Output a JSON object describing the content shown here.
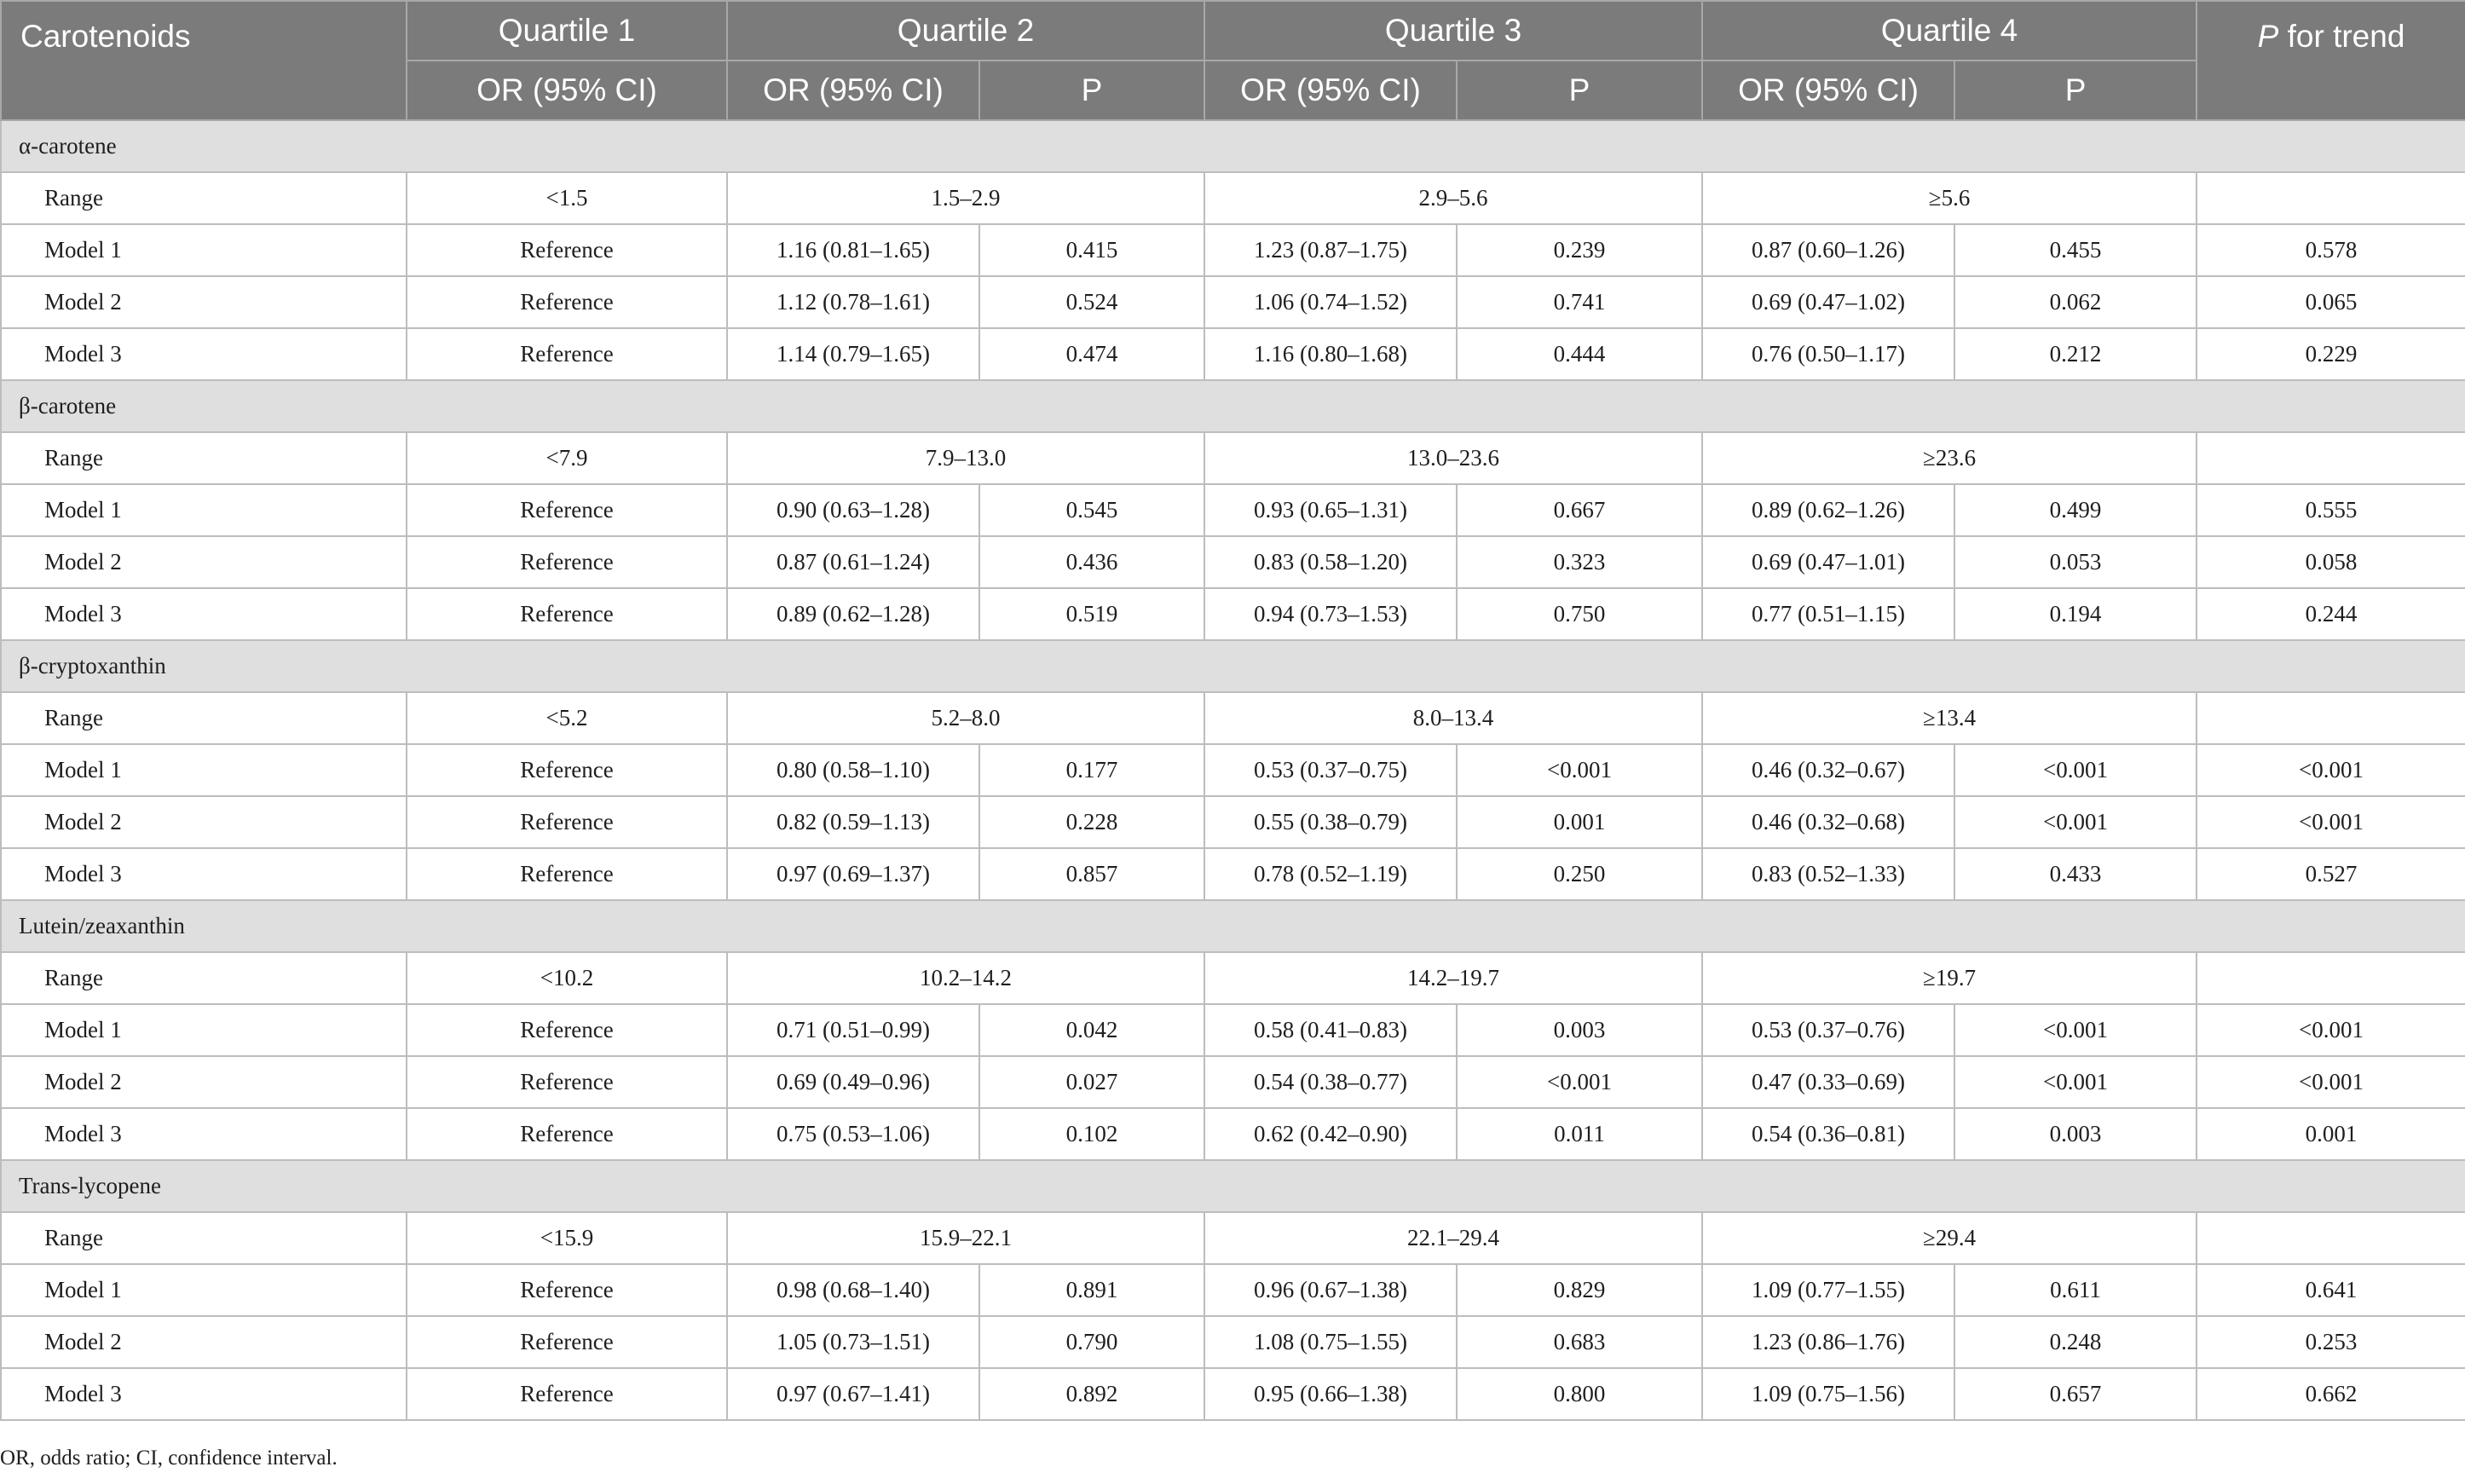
{
  "header": {
    "carotenoids": "Carotenoids",
    "quartile1": "Quartile 1",
    "quartile2": "Quartile 2",
    "quartile3": "Quartile 3",
    "quartile4": "Quartile 4",
    "p_for_trend_p": "P",
    "p_for_trend_rest": " for trend",
    "or_ci": "OR (95% CI)",
    "p": "P"
  },
  "groups": [
    {
      "name": "α-carotene",
      "range": [
        "Range",
        "<1.5",
        "1.5–2.9",
        "2.9–5.6",
        "≥5.6",
        ""
      ],
      "models": [
        [
          "Model 1",
          "Reference",
          "1.16 (0.81–1.65)",
          "0.415",
          "1.23 (0.87–1.75)",
          "0.239",
          "0.87 (0.60–1.26)",
          "0.455",
          "0.578"
        ],
        [
          "Model 2",
          "Reference",
          "1.12 (0.78–1.61)",
          "0.524",
          "1.06 (0.74–1.52)",
          "0.741",
          "0.69 (0.47–1.02)",
          "0.062",
          "0.065"
        ],
        [
          "Model 3",
          "Reference",
          "1.14 (0.79–1.65)",
          "0.474",
          "1.16 (0.80–1.68)",
          "0.444",
          "0.76 (0.50–1.17)",
          "0.212",
          "0.229"
        ]
      ]
    },
    {
      "name": "β-carotene",
      "range": [
        "Range",
        "<7.9",
        "7.9–13.0",
        "13.0–23.6",
        "≥23.6",
        ""
      ],
      "models": [
        [
          "Model 1",
          "Reference",
          "0.90 (0.63–1.28)",
          "0.545",
          "0.93 (0.65–1.31)",
          "0.667",
          "0.89 (0.62–1.26)",
          "0.499",
          "0.555"
        ],
        [
          "Model 2",
          "Reference",
          "0.87 (0.61–1.24)",
          "0.436",
          "0.83 (0.58–1.20)",
          "0.323",
          "0.69 (0.47–1.01)",
          "0.053",
          "0.058"
        ],
        [
          "Model 3",
          "Reference",
          "0.89 (0.62–1.28)",
          "0.519",
          "0.94 (0.73–1.53)",
          "0.750",
          "0.77 (0.51–1.15)",
          "0.194",
          "0.244"
        ]
      ]
    },
    {
      "name": "β-cryptoxanthin",
      "range": [
        "Range",
        "<5.2",
        "5.2–8.0",
        "8.0–13.4",
        "≥13.4",
        ""
      ],
      "models": [
        [
          "Model 1",
          "Reference",
          "0.80 (0.58–1.10)",
          "0.177",
          "0.53 (0.37–0.75)",
          "<0.001",
          "0.46 (0.32–0.67)",
          "<0.001",
          "<0.001"
        ],
        [
          "Model 2",
          "Reference",
          "0.82 (0.59–1.13)",
          "0.228",
          "0.55 (0.38–0.79)",
          "0.001",
          "0.46 (0.32–0.68)",
          "<0.001",
          "<0.001"
        ],
        [
          "Model 3",
          "Reference",
          "0.97 (0.69–1.37)",
          "0.857",
          "0.78 (0.52–1.19)",
          "0.250",
          "0.83 (0.52–1.33)",
          "0.433",
          "0.527"
        ]
      ]
    },
    {
      "name": "Lutein/zeaxanthin",
      "range": [
        "Range",
        "<10.2",
        "10.2–14.2",
        "14.2–19.7",
        "≥19.7",
        ""
      ],
      "models": [
        [
          "Model 1",
          "Reference",
          "0.71 (0.51–0.99)",
          "0.042",
          "0.58 (0.41–0.83)",
          "0.003",
          "0.53 (0.37–0.76)",
          "<0.001",
          "<0.001"
        ],
        [
          "Model 2",
          "Reference",
          "0.69 (0.49–0.96)",
          "0.027",
          "0.54 (0.38–0.77)",
          "<0.001",
          "0.47 (0.33–0.69)",
          "<0.001",
          "<0.001"
        ],
        [
          "Model 3",
          "Reference",
          "0.75 (0.53–1.06)",
          "0.102",
          "0.62 (0.42–0.90)",
          "0.011",
          "0.54 (0.36–0.81)",
          "0.003",
          "0.001"
        ]
      ]
    },
    {
      "name": "Trans-lycopene",
      "range": [
        "Range",
        "<15.9",
        "15.9–22.1",
        "22.1–29.4",
        "≥29.4",
        ""
      ],
      "models": [
        [
          "Model 1",
          "Reference",
          "0.98 (0.68–1.40)",
          "0.891",
          "0.96 (0.67–1.38)",
          "0.829",
          "1.09 (0.77–1.55)",
          "0.611",
          "0.641"
        ],
        [
          "Model 2",
          "Reference",
          "1.05 (0.73–1.51)",
          "0.790",
          "1.08 (0.75–1.55)",
          "0.683",
          "1.23 (0.86–1.76)",
          "0.248",
          "0.253"
        ],
        [
          "Model 3",
          "Reference",
          "0.97 (0.67–1.41)",
          "0.892",
          "0.95 (0.66–1.38)",
          "0.800",
          "1.09 (0.75–1.56)",
          "0.657",
          "0.662"
        ]
      ]
    }
  ],
  "footnote": "OR, odds ratio; CI, confidence interval."
}
